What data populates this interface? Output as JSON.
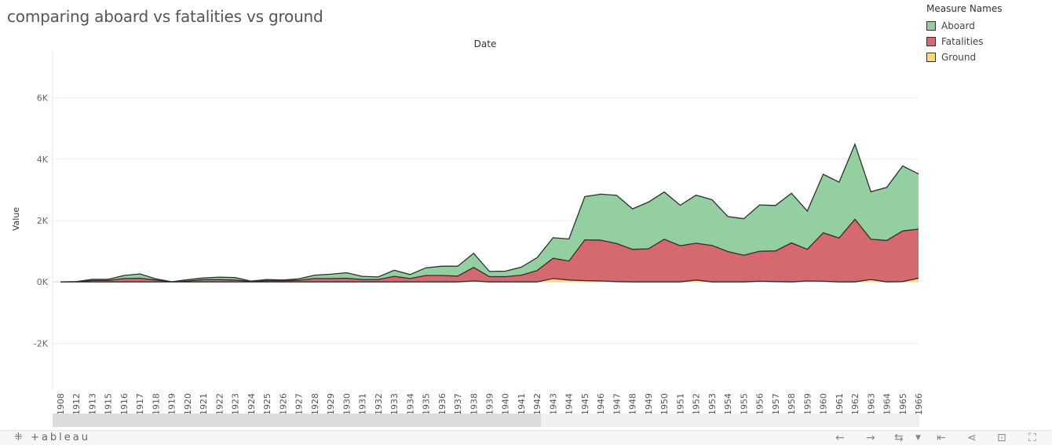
{
  "chart_data": {
    "type": "area",
    "title": "comparing aboard vs fatalities vs ground",
    "column_header": "Date",
    "ylabel": "Value",
    "ylim": [
      -3500,
      7500
    ],
    "y_ticks": [
      -2000,
      0,
      2000,
      4000,
      6000
    ],
    "y_tick_labels": [
      "-2K",
      "0K",
      "2K",
      "4K",
      "6K"
    ],
    "stacked": true,
    "grid": true,
    "legend_title": "Measure Names",
    "legend_position": "top-right",
    "categories": [
      "1908",
      "1912",
      "1913",
      "1915",
      "1916",
      "1917",
      "1918",
      "1919",
      "1920",
      "1921",
      "1922",
      "1923",
      "1924",
      "1925",
      "1926",
      "1927",
      "1928",
      "1929",
      "1930",
      "1931",
      "1932",
      "1933",
      "1934",
      "1935",
      "1936",
      "1937",
      "1938",
      "1939",
      "1940",
      "1941",
      "1942",
      "1943",
      "1944",
      "1945",
      "1946",
      "1947",
      "1948",
      "1949",
      "1950",
      "1951",
      "1952",
      "1953",
      "1954",
      "1955",
      "1956",
      "1957",
      "1958",
      "1959",
      "1960",
      "1961",
      "1962",
      "1963",
      "1964",
      "1965",
      "1966"
    ],
    "series": [
      {
        "name": "Ground",
        "color": "#fdd684",
        "values": [
          0,
          0,
          0,
          0,
          0,
          0,
          0,
          0,
          0,
          0,
          0,
          0,
          0,
          0,
          0,
          0,
          0,
          0,
          0,
          0,
          0,
          0,
          0,
          0,
          0,
          0,
          30,
          0,
          0,
          0,
          0,
          110,
          60,
          40,
          30,
          10,
          0,
          0,
          0,
          0,
          60,
          0,
          0,
          0,
          20,
          10,
          0,
          30,
          20,
          0,
          0,
          80,
          0,
          10,
          120
        ]
      },
      {
        "name": "Fatalities",
        "color": "#d4696f",
        "values": [
          2,
          5,
          45,
          45,
          110,
          120,
          60,
          5,
          30,
          70,
          75,
          60,
          15,
          40,
          40,
          50,
          110,
          110,
          120,
          80,
          80,
          180,
          110,
          210,
          210,
          190,
          440,
          170,
          170,
          220,
          370,
          660,
          620,
          1330,
          1330,
          1240,
          1060,
          1080,
          1390,
          1180,
          1200,
          1190,
          990,
          870,
          980,
          1000,
          1270,
          1030,
          1580,
          1430,
          2040,
          1310,
          1350,
          1650,
          1600
        ]
      },
      {
        "name": "Aboard",
        "color": "#93cfa0",
        "values": [
          1,
          5,
          40,
          40,
          100,
          140,
          40,
          0,
          40,
          60,
          80,
          80,
          10,
          40,
          20,
          50,
          110,
          140,
          180,
          100,
          80,
          200,
          130,
          250,
          300,
          320,
          460,
          170,
          180,
          260,
          420,
          670,
          720,
          1410,
          1500,
          1570,
          1320,
          1520,
          1540,
          1320,
          1570,
          1490,
          1140,
          1190,
          1510,
          1480,
          1620,
          1250,
          1910,
          1820,
          2450,
          1550,
          1730,
          2120,
          1800
        ]
      }
    ]
  },
  "footer": {
    "brand": "+ableau"
  }
}
